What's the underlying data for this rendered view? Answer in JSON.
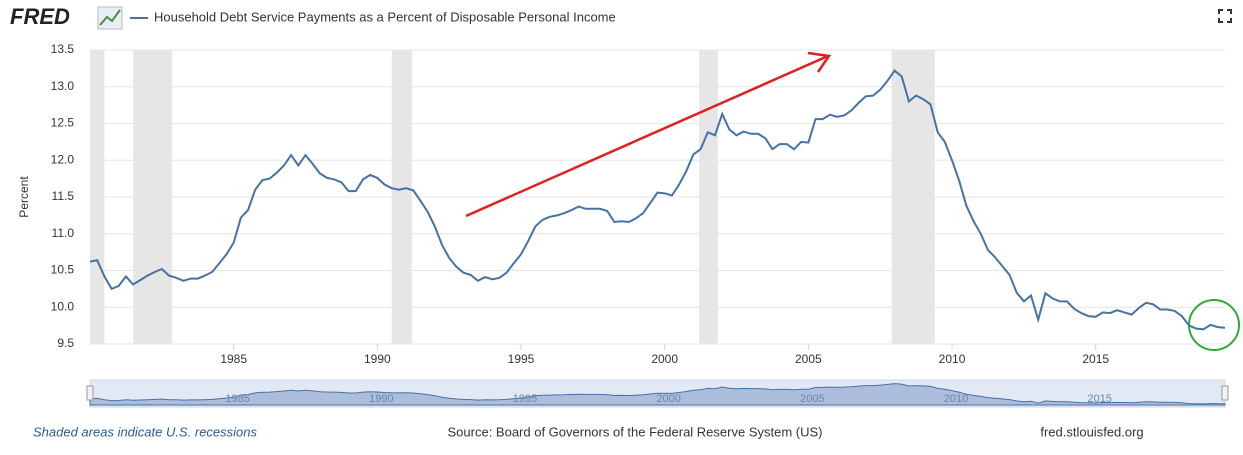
{
  "logo": "FRED",
  "chart_data": {
    "type": "line",
    "y_label": "Percent",
    "series": [
      {
        "name": "Household Debt Service Payments as a Percent of Disposable Personal Income",
        "color": "#4572a7",
        "values": [
          10.62,
          10.64,
          10.42,
          10.25,
          10.29,
          10.42,
          10.31,
          10.37,
          10.43,
          10.48,
          10.52,
          10.43,
          10.4,
          10.36,
          10.39,
          10.39,
          10.43,
          10.48,
          10.6,
          10.72,
          10.88,
          11.22,
          11.32,
          11.6,
          11.73,
          11.75,
          11.83,
          11.93,
          12.07,
          11.93,
          12.07,
          11.95,
          11.82,
          11.76,
          11.74,
          11.7,
          11.58,
          11.58,
          11.74,
          11.8,
          11.76,
          11.67,
          11.62,
          11.6,
          11.62,
          11.59,
          11.45,
          11.3,
          11.1,
          10.85,
          10.67,
          10.55,
          10.47,
          10.44,
          10.36,
          10.41,
          10.38,
          10.4,
          10.47,
          10.6,
          10.72,
          10.9,
          11.1,
          11.19,
          11.23,
          11.25,
          11.28,
          11.32,
          11.37,
          11.34,
          11.34,
          11.34,
          11.31,
          11.16,
          11.17,
          11.16,
          11.21,
          11.28,
          11.42,
          11.56,
          11.55,
          11.52,
          11.67,
          11.85,
          12.08,
          12.15,
          12.38,
          12.34,
          12.63,
          12.42,
          12.34,
          12.39,
          12.36,
          12.36,
          12.3,
          12.15,
          12.22,
          12.22,
          12.15,
          12.25,
          12.24,
          12.56,
          12.56,
          12.62,
          12.59,
          12.61,
          12.68,
          12.78,
          12.87,
          12.88,
          12.96,
          13.08,
          13.22,
          13.14,
          12.8,
          12.88,
          12.83,
          12.76,
          12.38,
          12.25,
          12.0,
          11.72,
          11.38,
          11.17,
          11.0,
          10.78,
          10.68,
          10.56,
          10.44,
          10.2,
          10.08,
          10.16,
          9.83,
          10.19,
          10.12,
          10.08,
          10.08,
          9.98,
          9.92,
          9.88,
          9.87,
          9.93,
          9.92,
          9.96,
          9.93,
          9.9,
          9.99,
          10.06,
          10.04,
          9.97,
          9.97,
          9.95,
          9.88,
          9.75,
          9.71,
          9.7,
          9.76,
          9.73,
          9.72
        ]
      }
    ],
    "x": [
      1980,
      1980.25,
      1980.5,
      1980.75,
      1981,
      1981.25,
      1981.5,
      1981.75,
      1982,
      1982.25,
      1982.5,
      1982.75,
      1983,
      1983.25,
      1983.5,
      1983.75,
      1984,
      1984.25,
      1984.5,
      1984.75,
      1985,
      1985.25,
      1985.5,
      1985.75,
      1986,
      1986.25,
      1986.5,
      1986.75,
      1987,
      1987.25,
      1987.5,
      1987.75,
      1988,
      1988.25,
      1988.5,
      1988.75,
      1989,
      1989.25,
      1989.5,
      1989.75,
      1990,
      1990.25,
      1990.5,
      1990.75,
      1991,
      1991.25,
      1991.5,
      1991.75,
      1992,
      1992.25,
      1992.5,
      1992.75,
      1993,
      1993.25,
      1993.5,
      1993.75,
      1994,
      1994.25,
      1994.5,
      1994.75,
      1995,
      1995.25,
      1995.5,
      1995.75,
      1996,
      1996.25,
      1996.5,
      1996.75,
      1997,
      1997.25,
      1997.5,
      1997.75,
      1998,
      1998.25,
      1998.5,
      1998.75,
      1999,
      1999.25,
      1999.5,
      1999.75,
      2000,
      2000.25,
      2000.5,
      2000.75,
      2001,
      2001.25,
      2001.5,
      2001.75,
      2002,
      2002.25,
      2002.5,
      2002.75,
      2003,
      2003.25,
      2003.5,
      2003.75,
      2004,
      2004.25,
      2004.5,
      2004.75,
      2005,
      2005.25,
      2005.5,
      2005.75,
      2006,
      2006.25,
      2006.5,
      2006.75,
      2007,
      2007.25,
      2007.5,
      2007.75,
      2008,
      2008.25,
      2008.5,
      2008.75,
      2009,
      2009.25,
      2009.5,
      2009.75,
      2010,
      2010.25,
      2010.5,
      2010.75,
      2011,
      2011.25,
      2011.5,
      2011.75,
      2012,
      2012.25,
      2012.5,
      2012.75,
      2013,
      2013.25,
      2013.5,
      2013.75,
      2014,
      2014.25,
      2014.5,
      2014.75,
      2015,
      2015.25,
      2015.5,
      2015.75,
      2016,
      2016.25,
      2016.5,
      2016.75,
      2017,
      2017.25,
      2017.5,
      2017.75,
      2018,
      2018.25,
      2018.5,
      2018.75,
      2019,
      2019.25,
      2019.5
    ],
    "recessions": [
      [
        1980,
        1980.5
      ],
      [
        1981.5,
        1982.85
      ],
      [
        1990.5,
        1991.2
      ],
      [
        2001.2,
        2001.85
      ],
      [
        2007.9,
        2009.4
      ]
    ],
    "xlim": [
      1980,
      2019.5
    ],
    "xticks": [
      1985,
      1990,
      1995,
      2000,
      2005,
      2010,
      2015
    ],
    "ylim": [
      9.5,
      13.5
    ],
    "yticks": [
      13.5,
      {
        "value": 13,
        "label": "13.0"
      },
      12.5,
      {
        "value": 12,
        "label": "12.0"
      },
      11.5,
      {
        "value": 11,
        "label": "11.0"
      },
      10.5,
      {
        "value": 10,
        "label": "10.0"
      },
      9.5
    ],
    "grid": true,
    "recession_color": "#e6e6e6",
    "note": "Shaded areas indicate U.S. recessions",
    "source": "Source: Board of Governors of the Federal Reserve System (US)",
    "site": "fred.stlouisfed.org"
  }
}
